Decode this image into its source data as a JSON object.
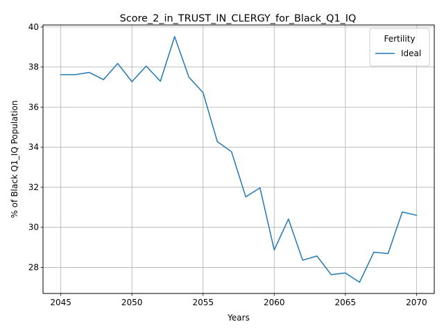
{
  "chart_data": {
    "type": "line",
    "title": "Score_2_in_TRUST_IN_CLERGY_for_Black_Q1_IQ",
    "xlabel": "Years",
    "ylabel": "% of Black Q1_IQ Population",
    "xlim": [
      2043.75,
      2071.25
    ],
    "ylim": [
      26.7,
      40.1
    ],
    "xticks": [
      2045,
      2050,
      2055,
      2060,
      2065,
      2070
    ],
    "yticks": [
      28,
      30,
      32,
      34,
      36,
      38,
      40
    ],
    "grid": true,
    "legend": {
      "title": "Fertility",
      "placement": "top-right"
    },
    "x": [
      2045,
      2046,
      2047,
      2048,
      2049,
      2050,
      2051,
      2052,
      2053,
      2054,
      2055,
      2056,
      2057,
      2058,
      2059,
      2060,
      2061,
      2062,
      2063,
      2064,
      2065,
      2066,
      2067,
      2068,
      2069,
      2070
    ],
    "series": [
      {
        "name": "Ideal",
        "color": "#1f77b4",
        "values": [
          37.62,
          37.62,
          37.73,
          37.37,
          38.18,
          37.27,
          38.05,
          37.29,
          39.52,
          37.5,
          36.72,
          34.28,
          33.77,
          31.52,
          31.97,
          28.87,
          30.41,
          28.36,
          28.57,
          27.64,
          27.72,
          27.26,
          28.76,
          28.69,
          30.77,
          30.6
        ]
      }
    ]
  }
}
